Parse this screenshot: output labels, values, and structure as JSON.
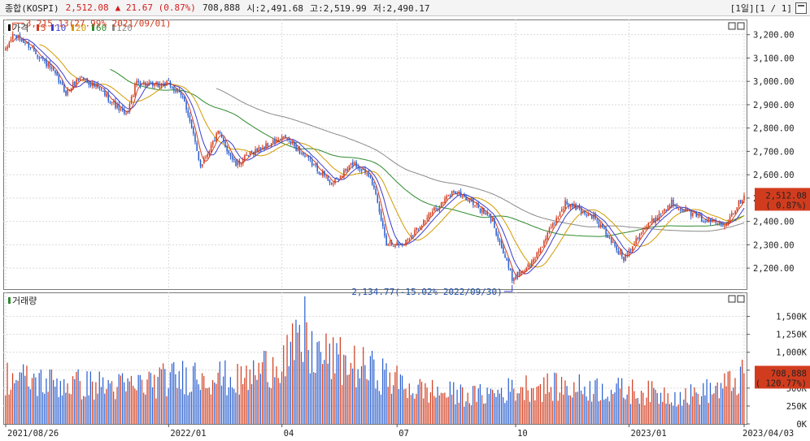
{
  "header": {
    "name": "종합(KOSPI)",
    "price": "2,512.08",
    "change": "▲ 21.67 (0.87%)",
    "volume": "708,888",
    "open": "시:2,491.68",
    "high": "고:2,519.99",
    "low": "저:2,490.17",
    "period": "[1일][1 / 1]"
  },
  "colors": {
    "up": "#d23c1e",
    "down": "#2a5fcf",
    "ma5": "#d23c1e",
    "ma10": "#3c3ccf",
    "ma20": "#d49a00",
    "ma60": "#2f8a2f",
    "ma120": "#8a8a8a"
  },
  "chart_data": [
    {
      "type": "candlestick",
      "panel": "price",
      "legend": [
        "가격",
        "5",
        "10",
        "20",
        "60",
        "120"
      ],
      "y_ticks": [
        "3,200.00",
        "3,100.00",
        "3,000.00",
        "2,900.00",
        "2,800.00",
        "2,700.00",
        "2,600.00",
        "2,500.00",
        "2,400.00",
        "2,300.00",
        "2,200.00"
      ],
      "y_tick_values": [
        3200,
        3100,
        3000,
        2900,
        2800,
        2700,
        2600,
        2500,
        2400,
        2300,
        2200
      ],
      "ylim": [
        2110,
        3265
      ],
      "x_tick_labels": [
        "2021/08/26",
        "2022/01",
        "04",
        "07",
        "10",
        "2023/01",
        "2023/04/03"
      ],
      "x_tick_dates": [
        "2021-08-26",
        "2022-01-03",
        "2022-04-01",
        "2022-07-01",
        "2022-10-04",
        "2023-01-02",
        "2023-04-03"
      ],
      "price_path": [
        [
          "2021-08-26",
          3130
        ],
        [
          "2021-09-01",
          3200
        ],
        [
          "2021-09-15",
          3150
        ],
        [
          "2021-10-01",
          3050
        ],
        [
          "2021-10-13",
          2950
        ],
        [
          "2021-10-25",
          3020
        ],
        [
          "2021-11-10",
          2960
        ],
        [
          "2021-11-30",
          2850
        ],
        [
          "2021-12-08",
          3000
        ],
        [
          "2021-12-20",
          2980
        ],
        [
          "2022-01-03",
          2990
        ],
        [
          "2022-01-14",
          2920
        ],
        [
          "2022-01-27",
          2640
        ],
        [
          "2022-02-10",
          2780
        ],
        [
          "2022-02-24",
          2640
        ],
        [
          "2022-03-10",
          2700
        ],
        [
          "2022-04-05",
          2760
        ],
        [
          "2022-04-27",
          2640
        ],
        [
          "2022-05-12",
          2560
        ],
        [
          "2022-05-27",
          2650
        ],
        [
          "2022-06-10",
          2600
        ],
        [
          "2022-06-23",
          2310
        ],
        [
          "2022-07-06",
          2300
        ],
        [
          "2022-07-25",
          2410
        ],
        [
          "2022-08-16",
          2530
        ],
        [
          "2022-08-31",
          2480
        ],
        [
          "2022-09-15",
          2400
        ],
        [
          "2022-09-30",
          2155
        ],
        [
          "2022-10-17",
          2220
        ],
        [
          "2022-11-11",
          2480
        ],
        [
          "2022-12-05",
          2420
        ],
        [
          "2022-12-28",
          2240
        ],
        [
          "2023-01-10",
          2350
        ],
        [
          "2023-02-03",
          2480
        ],
        [
          "2023-02-28",
          2410
        ],
        [
          "2023-03-17",
          2390
        ],
        [
          "2023-04-03",
          2512.08
        ]
      ],
      "annotations": [
        {
          "text": "3,215.13(27.99% 2021/09/01)",
          "date": "2021-09-01",
          "value": 3215.13,
          "kind": "high"
        },
        {
          "text": "2,134.77(-15.02% 2022/09/30)",
          "date": "2022-09-30",
          "value": 2134.77,
          "kind": "low"
        }
      ],
      "last_value_label": "2,512.08",
      "last_change_label": "( 0.87%)",
      "last_value": 2512.08
    },
    {
      "type": "bar",
      "panel": "volume",
      "legend": [
        "거래량"
      ],
      "y_ticks": [
        "1,500K",
        "1,250K",
        "1,000K",
        "750K",
        "500K",
        "250K",
        "0K"
      ],
      "y_tick_values": [
        1500,
        1250,
        1000,
        750,
        500,
        250,
        0
      ],
      "ylim": [
        0,
        1790
      ],
      "volume_path": [
        [
          "2021-08-26",
          700
        ],
        [
          "2021-10-01",
          620
        ],
        [
          "2021-12-01",
          560
        ],
        [
          "2022-01-27",
          760
        ],
        [
          "2022-03-01",
          640
        ],
        [
          "2022-04-15",
          1150
        ],
        [
          "2022-05-15",
          950
        ],
        [
          "2022-06-15",
          780
        ],
        [
          "2022-07-15",
          520
        ],
        [
          "2022-09-01",
          420
        ],
        [
          "2022-10-15",
          560
        ],
        [
          "2022-12-01",
          540
        ],
        [
          "2023-01-10",
          480
        ],
        [
          "2023-02-15",
          420
        ],
        [
          "2023-03-15",
          540
        ],
        [
          "2023-04-03",
          708.888
        ]
      ],
      "volume_peak": {
        "date": "2022-04-20",
        "value": 1780
      },
      "last_value_label": "708,888",
      "last_change_label": "( 120.77%)",
      "last_value": 708.888
    }
  ]
}
